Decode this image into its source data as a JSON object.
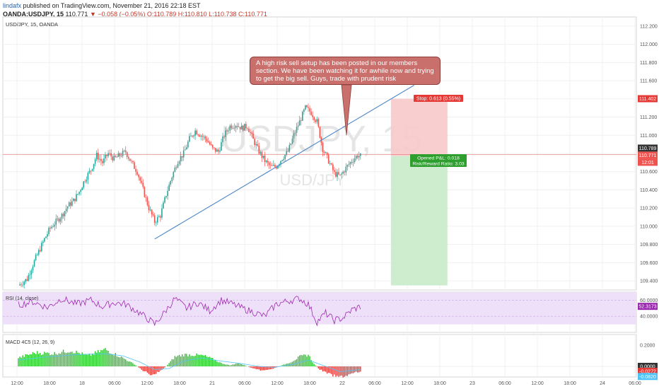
{
  "header": {
    "author": "lindafx",
    "published_text": "published on TradingView.com, November 21, 2016 22:18 EST",
    "symbol": "OANDA:USDJPY, 15",
    "last": "110.771",
    "change": "▼ −0.058 (−0.05%)",
    "ohlc": "O:110.789 H:110.810 L:110.738 C:110.771"
  },
  "chart_title": "USD/JPY, 15, OANDA",
  "watermark": {
    "main": "USDJPY, 15",
    "sub": "USD/JPY"
  },
  "annotation": "A high risk sell setup has been posted in our members section. We have been watching it for awhile now and trying to get the big sell. Guys, trade with prudent risk",
  "position": {
    "stop_label": "Stop: 0.613 (0.55%)",
    "pnl_label": "Opened P&L: 0.018",
    "rr_label": "Risk/Reward Ratio: 3.03"
  },
  "axis_tags": {
    "stop_price": "111.402",
    "last_price": "110.789",
    "entry_price": "110.771",
    "countdown": "12:01"
  },
  "colors": {
    "up": "#26a69a",
    "down": "#ef5350",
    "trendline": "#4a86c8",
    "rsi": "#9c27b0",
    "rsi_band": "#efe0fa",
    "macd_up": "#26c426",
    "macd_down": "#e53935",
    "signal": "#4fc3f7",
    "stop_zone": "#f8c9c9",
    "target_zone": "#c9ebc9"
  },
  "chart_data": {
    "type": "candlestick",
    "symbol": "USD/JPY",
    "timeframe": "15",
    "price_axis": {
      "range": [
        109.3,
        112.3
      ],
      "ticks": [
        "109.400",
        "109.600",
        "109.800",
        "110.000",
        "110.200",
        "110.400",
        "110.600",
        "110.800",
        "111.000",
        "111.200",
        "111.400",
        "111.600",
        "111.800",
        "112.000",
        "112.200"
      ]
    },
    "time_axis": {
      "labels": [
        "12:00",
        "18:00",
        "18",
        "06:00",
        "12:00",
        "18:00",
        "21",
        "06:00",
        "12:00",
        "18:00",
        "22",
        "06:00",
        "12:00",
        "18:00",
        "23",
        "06:00",
        "12:00",
        "18:00",
        "24",
        "06:00"
      ]
    },
    "close_path": [
      [
        0,
        109.35
      ],
      [
        6,
        109.42
      ],
      [
        10,
        109.58
      ],
      [
        14,
        109.72
      ],
      [
        18,
        109.86
      ],
      [
        22,
        109.98
      ],
      [
        26,
        110.05
      ],
      [
        30,
        110.12
      ],
      [
        34,
        110.22
      ],
      [
        38,
        110.28
      ],
      [
        42,
        110.38
      ],
      [
        46,
        110.52
      ],
      [
        50,
        110.62
      ],
      [
        54,
        110.78
      ],
      [
        58,
        110.7
      ],
      [
        62,
        110.8
      ],
      [
        66,
        110.74
      ],
      [
        70,
        110.78
      ],
      [
        74,
        110.82
      ],
      [
        78,
        110.7
      ],
      [
        82,
        110.6
      ],
      [
        86,
        110.4
      ],
      [
        90,
        110.2
      ],
      [
        94,
        110.05
      ],
      [
        98,
        110.12
      ],
      [
        102,
        110.35
      ],
      [
        106,
        110.55
      ],
      [
        110,
        110.72
      ],
      [
        114,
        110.8
      ],
      [
        118,
        110.96
      ],
      [
        122,
        111.05
      ],
      [
        126,
        111.0
      ],
      [
        130,
        110.95
      ],
      [
        134,
        110.85
      ],
      [
        138,
        110.82
      ],
      [
        142,
        111.0
      ],
      [
        146,
        111.1
      ],
      [
        150,
        111.12
      ],
      [
        154,
        111.08
      ],
      [
        158,
        111.1
      ],
      [
        162,
        110.95
      ],
      [
        166,
        110.82
      ],
      [
        170,
        110.72
      ],
      [
        174,
        110.65
      ],
      [
        178,
        110.66
      ],
      [
        182,
        110.75
      ],
      [
        186,
        110.82
      ],
      [
        190,
        111.0
      ],
      [
        194,
        111.15
      ],
      [
        198,
        111.3
      ],
      [
        202,
        111.25
      ],
      [
        206,
        111.15
      ],
      [
        210,
        110.85
      ],
      [
        214,
        110.72
      ],
      [
        218,
        110.58
      ],
      [
        222,
        110.55
      ],
      [
        226,
        110.64
      ],
      [
        230,
        110.72
      ],
      [
        234,
        110.78
      ],
      [
        236,
        110.771
      ]
    ],
    "trendline": [
      [
        94,
        109.86
      ],
      [
        273,
        111.55
      ]
    ],
    "annotation_pointer_price": 111.0,
    "position": {
      "type": "short",
      "entry": 110.771,
      "stop": 111.402,
      "target": 109.35,
      "index_start": 257,
      "index_end": 296
    },
    "current_price": 110.789,
    "indicators": [
      {
        "name": "RSI (14, close)",
        "range": [
          20,
          70
        ],
        "ticks": [
          "60.0000",
          "40.0000"
        ],
        "last": "52.3173",
        "path": [
          [
            0,
            54
          ],
          [
            10,
            58
          ],
          [
            20,
            51
          ],
          [
            30,
            62
          ],
          [
            40,
            55
          ],
          [
            50,
            60
          ],
          [
            58,
            52
          ],
          [
            66,
            57
          ],
          [
            74,
            55
          ],
          [
            82,
            46
          ],
          [
            90,
            36
          ],
          [
            94,
            30
          ],
          [
            100,
            43
          ],
          [
            108,
            62
          ],
          [
            116,
            50
          ],
          [
            124,
            57
          ],
          [
            132,
            47
          ],
          [
            140,
            60
          ],
          [
            148,
            55
          ],
          [
            156,
            49
          ],
          [
            164,
            44
          ],
          [
            170,
            40
          ],
          [
            178,
            55
          ],
          [
            186,
            59
          ],
          [
            194,
            62
          ],
          [
            200,
            55
          ],
          [
            206,
            33
          ],
          [
            212,
            44
          ],
          [
            218,
            35
          ],
          [
            224,
            38
          ],
          [
            230,
            48
          ],
          [
            236,
            52
          ]
        ]
      },
      {
        "name": "MACD 4C5 (12, 26, 9)",
        "range": [
          -0.1,
          0.3
        ],
        "ticks": [
          "0.2000",
          "0.0000"
        ],
        "labels": [
          "0.0000",
          "-0.0272",
          "-0.0820"
        ],
        "histogram": [
          [
            0,
            0.08
          ],
          [
            12,
            0.13
          ],
          [
            24,
            0.12
          ],
          [
            36,
            0.15
          ],
          [
            48,
            0.1
          ],
          [
            60,
            0.16
          ],
          [
            72,
            0.08
          ],
          [
            80,
            0.02
          ],
          [
            86,
            -0.04
          ],
          [
            92,
            -0.08
          ],
          [
            96,
            -0.06
          ],
          [
            102,
            0.0
          ],
          [
            108,
            0.09
          ],
          [
            114,
            0.11
          ],
          [
            120,
            0.11
          ],
          [
            128,
            0.1
          ],
          [
            134,
            0.07
          ],
          [
            140,
            0.03
          ],
          [
            146,
            0.01
          ],
          [
            152,
            0.03
          ],
          [
            158,
            0.0
          ],
          [
            164,
            -0.03
          ],
          [
            170,
            -0.04
          ],
          [
            176,
            -0.02
          ],
          [
            182,
            0.01
          ],
          [
            188,
            0.04
          ],
          [
            194,
            0.09
          ],
          [
            200,
            0.11
          ],
          [
            204,
            0.02
          ],
          [
            208,
            -0.03
          ],
          [
            214,
            -0.07
          ],
          [
            220,
            -0.1
          ],
          [
            226,
            -0.09
          ],
          [
            232,
            -0.06
          ],
          [
            236,
            -0.05
          ]
        ],
        "signal": [
          [
            0,
            0.06
          ],
          [
            20,
            0.09
          ],
          [
            40,
            0.11
          ],
          [
            60,
            0.12
          ],
          [
            72,
            0.1
          ],
          [
            84,
            0.04
          ],
          [
            94,
            -0.03
          ],
          [
            104,
            -0.02
          ],
          [
            114,
            0.05
          ],
          [
            126,
            0.08
          ],
          [
            140,
            0.05
          ],
          [
            152,
            0.03
          ],
          [
            166,
            0.0
          ],
          [
            176,
            -0.01
          ],
          [
            190,
            0.02
          ],
          [
            200,
            0.06
          ],
          [
            210,
            0.01
          ],
          [
            222,
            -0.05
          ],
          [
            236,
            -0.03
          ]
        ]
      }
    ]
  }
}
